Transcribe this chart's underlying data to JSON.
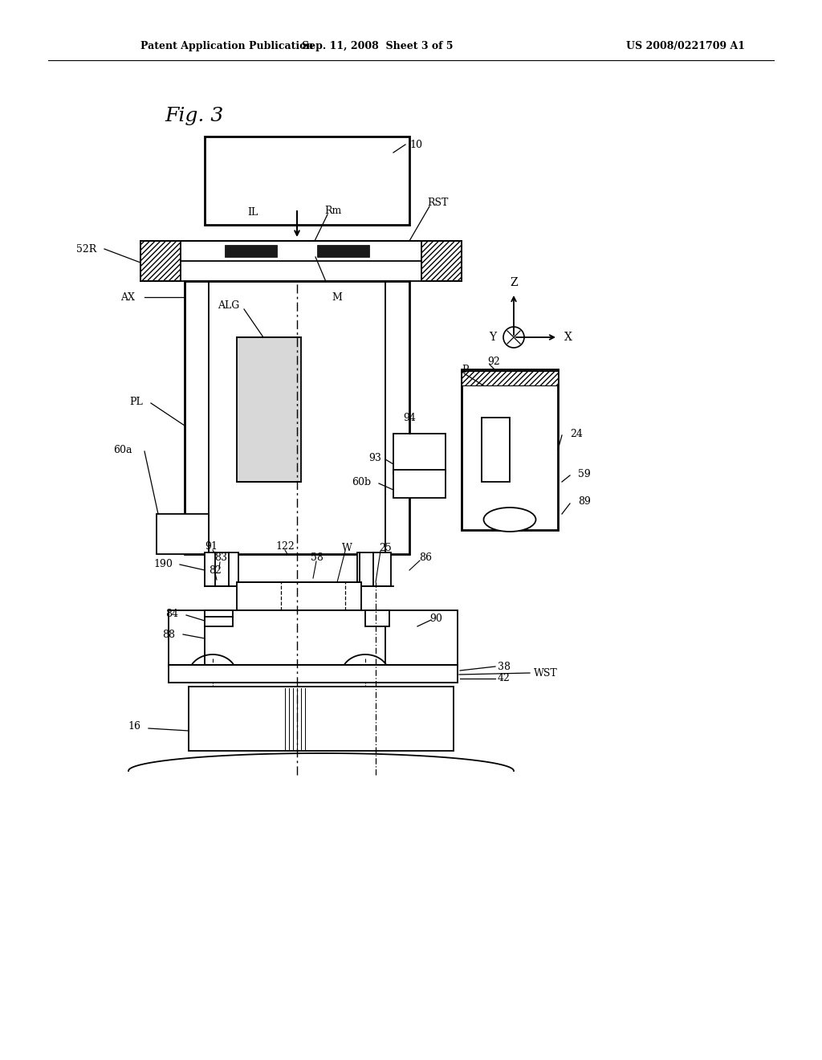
{
  "bg_color": "#ffffff",
  "header_left": "Patent Application Publication",
  "header_mid": "Sep. 11, 2008  Sheet 3 of 5",
  "header_right": "US 2008/0221709 A1",
  "fig_label": "Fig. 3"
}
